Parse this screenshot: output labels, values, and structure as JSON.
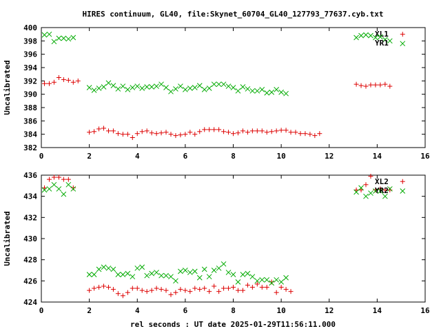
{
  "title": "HIRES continuum, GL40, file:Skynet_60704_GL40_127793_77637.cyb.txt",
  "xlabel": "rel seconds : UT date 2025-01-29T11:56:11.000",
  "colors": {
    "red": "#dd0000",
    "green": "#00aa00",
    "axis": "#000000"
  },
  "chart_data": [
    {
      "type": "scatter",
      "title": "",
      "xlabel": "",
      "ylabel": "Uncalibrated",
      "xlim": [
        0,
        16
      ],
      "ylim": [
        382,
        400
      ],
      "xticks": [
        "0",
        "2",
        "4",
        "6",
        "8",
        "10",
        "12",
        "14",
        "16"
      ],
      "yticks": [
        "382",
        "384",
        "386",
        "388",
        "390",
        "392",
        "394",
        "396",
        "398",
        "400"
      ],
      "legend_position": "top-right",
      "series": [
        {
          "name": "XL1",
          "marker": "plus",
          "color": "#dd0000",
          "x": [
            0.13,
            0.33,
            0.53,
            0.73,
            0.93,
            1.13,
            1.33,
            1.53,
            1.73,
            13.13,
            13.33,
            13.53,
            13.73,
            13.93,
            14.13,
            14.33,
            14.53,
            14.73,
            15.06,
            2.0,
            2.2,
            2.4,
            2.6,
            2.8,
            3.0,
            3.2,
            3.4,
            3.6,
            3.8,
            4.0,
            4.2,
            4.4,
            4.6,
            4.8,
            5.0,
            5.2,
            5.4,
            5.6,
            5.8,
            6.0,
            6.2,
            6.4,
            6.6,
            6.8,
            7.0,
            7.2,
            7.4,
            7.6,
            7.8,
            8.0,
            8.2,
            8.4,
            8.6,
            8.8,
            9.0,
            9.2,
            9.4,
            9.6,
            9.8,
            10.0,
            10.2,
            10.4,
            10.6,
            10.8,
            11.0,
            11.2,
            11.4,
            11.6,
            11.8,
            12.0,
            12.2,
            12.4,
            12.6,
            12.8
          ],
          "y": [
            391.6,
            391.6,
            391.8,
            392.5,
            392.2,
            392.1,
            391.8,
            392.0,
            null,
            391.5,
            391.3,
            391.2,
            391.4,
            391.4,
            391.4,
            391.5,
            391.2,
            null,
            399.0,
            384.3,
            384.4,
            384.8,
            384.9,
            384.5,
            384.5,
            384.1,
            384.0,
            384.0,
            383.5,
            384.1,
            384.4,
            384.5,
            384.2,
            384.1,
            384.2,
            384.3,
            384.0,
            383.8,
            383.9,
            384.0,
            384.3,
            384.0,
            384.4,
            384.7,
            384.7,
            384.7,
            384.7,
            384.4,
            384.3,
            384.1,
            384.2,
            384.5,
            384.3,
            384.5,
            384.5,
            384.5,
            384.3,
            384.4,
            384.5,
            384.6,
            384.6,
            384.3,
            384.3,
            384.1,
            384.1,
            384.0,
            383.8,
            384.1,
            null,
            null,
            null,
            null,
            null,
            null
          ],
          "label_value": "XL1"
        },
        {
          "name": "YR1",
          "marker": "cross",
          "color": "#00aa00",
          "x": [
            0.13,
            0.33,
            0.53,
            0.73,
            0.93,
            1.13,
            1.33,
            1.53,
            1.73,
            13.13,
            13.33,
            13.53,
            13.73,
            13.93,
            14.13,
            14.33,
            14.53,
            14.73,
            15.06,
            2.0,
            2.2,
            2.4,
            2.6,
            2.8,
            3.0,
            3.2,
            3.4,
            3.6,
            3.8,
            4.0,
            4.2,
            4.4,
            4.6,
            4.8,
            5.0,
            5.2,
            5.4,
            5.6,
            5.8,
            6.0,
            6.2,
            6.4,
            6.6,
            6.8,
            7.0,
            7.2,
            7.4,
            7.6,
            7.8,
            8.0,
            8.2,
            8.4,
            8.6,
            8.8,
            9.0,
            9.2,
            9.4,
            9.6,
            9.8,
            10.0,
            10.2,
            10.4,
            10.6,
            10.8,
            11.0,
            11.2,
            11.4,
            11.6,
            11.8,
            12.0,
            12.2,
            12.4,
            12.6,
            12.8
          ],
          "y": [
            398.9,
            399.0,
            397.9,
            398.4,
            398.4,
            398.3,
            398.5,
            null,
            null,
            398.5,
            398.8,
            398.9,
            398.8,
            398.5,
            398.6,
            398.2,
            398.0,
            null,
            397.6,
            391.0,
            390.6,
            390.9,
            391.1,
            391.7,
            391.3,
            390.8,
            391.2,
            390.7,
            391.0,
            391.2,
            390.9,
            391.1,
            391.1,
            391.2,
            391.5,
            391.0,
            390.4,
            390.8,
            391.2,
            390.7,
            390.9,
            391.0,
            391.3,
            390.7,
            390.9,
            391.5,
            391.5,
            391.5,
            391.2,
            391.0,
            390.5,
            391.1,
            390.8,
            390.5,
            390.5,
            390.7,
            390.2,
            390.3,
            390.7,
            390.3,
            390.1,
            null,
            null,
            null,
            null,
            null,
            null,
            null,
            null,
            null,
            null,
            null,
            null,
            null
          ],
          "label_value": "YR1"
        }
      ]
    },
    {
      "type": "scatter",
      "title": "",
      "xlabel": "rel seconds : UT date 2025-01-29T11:56:11.000",
      "ylabel": "Uncalibrated",
      "xlim": [
        0,
        16
      ],
      "ylim": [
        424,
        436
      ],
      "xticks": [
        "0",
        "2",
        "4",
        "6",
        "8",
        "10",
        "12",
        "14",
        "16"
      ],
      "yticks": [
        "424",
        "426",
        "428",
        "430",
        "432",
        "434",
        "436"
      ],
      "legend_position": "top-right",
      "series": [
        {
          "name": "XL2",
          "marker": "plus",
          "color": "#dd0000",
          "x": [
            0.13,
            0.33,
            0.53,
            0.73,
            0.93,
            1.13,
            1.33,
            1.53,
            1.73,
            13.13,
            13.33,
            13.53,
            13.73,
            13.93,
            14.13,
            14.33,
            14.53,
            14.73,
            15.06,
            2.0,
            2.2,
            2.4,
            2.6,
            2.8,
            3.0,
            3.2,
            3.4,
            3.6,
            3.8,
            4.0,
            4.2,
            4.4,
            4.6,
            4.8,
            5.0,
            5.2,
            5.4,
            5.6,
            5.8,
            6.0,
            6.2,
            6.4,
            6.6,
            6.8,
            7.0,
            7.2,
            7.4,
            7.6,
            7.8,
            8.0,
            8.2,
            8.4,
            8.6,
            8.8,
            9.0,
            9.2,
            9.4,
            9.6,
            9.8,
            10.0,
            10.2,
            10.4,
            10.6,
            10.8,
            11.0,
            11.2,
            11.4,
            11.6,
            11.8,
            12.0,
            12.2,
            12.4,
            12.6,
            12.8
          ],
          "y": [
            434.8,
            435.6,
            435.8,
            435.8,
            435.6,
            435.6,
            434.8,
            null,
            null,
            434.6,
            434.6,
            435.1,
            435.9,
            434.6,
            434.7,
            434.6,
            434.6,
            null,
            435.4,
            425.1,
            425.3,
            425.4,
            425.5,
            425.4,
            425.2,
            424.8,
            424.6,
            424.9,
            425.3,
            425.3,
            425.1,
            425.0,
            425.1,
            425.3,
            425.2,
            425.1,
            424.7,
            424.9,
            425.2,
            425.1,
            425.0,
            425.3,
            425.2,
            425.3,
            425.0,
            425.5,
            425.0,
            425.3,
            425.3,
            425.4,
            425.1,
            425.1,
            425.6,
            425.4,
            425.7,
            425.4,
            425.4,
            425.9,
            424.9,
            425.4,
            425.2,
            425.0,
            null,
            null,
            null,
            null,
            null,
            null,
            null,
            null,
            null,
            null,
            null,
            null
          ],
          "label_value": "XL2"
        },
        {
          "name": "YR2",
          "marker": "cross",
          "color": "#00aa00",
          "x": [
            0.13,
            0.33,
            0.53,
            0.73,
            0.93,
            1.13,
            1.33,
            1.53,
            1.73,
            13.13,
            13.33,
            13.53,
            13.73,
            13.93,
            14.13,
            14.33,
            14.53,
            14.73,
            15.06,
            2.0,
            2.2,
            2.4,
            2.6,
            2.8,
            3.0,
            3.2,
            3.4,
            3.6,
            3.8,
            4.0,
            4.2,
            4.4,
            4.6,
            4.8,
            5.0,
            5.2,
            5.4,
            5.6,
            5.8,
            6.0,
            6.2,
            6.4,
            6.6,
            6.8,
            7.0,
            7.2,
            7.4,
            7.6,
            7.8,
            8.0,
            8.2,
            8.4,
            8.6,
            8.8,
            9.0,
            9.2,
            9.4,
            9.6,
            9.8,
            10.0,
            10.2,
            10.4,
            10.6,
            10.8,
            11.0,
            11.2,
            11.4,
            11.6,
            11.8,
            12.0,
            12.2,
            12.4,
            12.6,
            12.8
          ],
          "y": [
            434.6,
            434.7,
            435.1,
            434.7,
            434.2,
            435.1,
            434.7,
            null,
            null,
            434.4,
            434.8,
            434.0,
            434.3,
            434.5,
            434.5,
            434.0,
            434.7,
            null,
            434.5,
            426.6,
            426.6,
            427.1,
            427.3,
            427.2,
            427.1,
            426.6,
            426.6,
            426.7,
            426.4,
            427.2,
            427.3,
            426.5,
            426.7,
            426.8,
            426.5,
            426.5,
            426.4,
            426.0,
            426.9,
            427.0,
            426.8,
            426.9,
            426.3,
            427.1,
            426.4,
            427.0,
            427.2,
            427.6,
            426.8,
            426.6,
            425.9,
            426.6,
            426.7,
            426.4,
            426.0,
            426.1,
            426.1,
            425.8,
            426.1,
            425.9,
            426.3,
            null,
            null,
            null,
            null,
            null,
            null,
            null,
            null,
            null,
            null,
            null,
            null,
            null
          ],
          "label_value": "YR2"
        }
      ]
    }
  ]
}
